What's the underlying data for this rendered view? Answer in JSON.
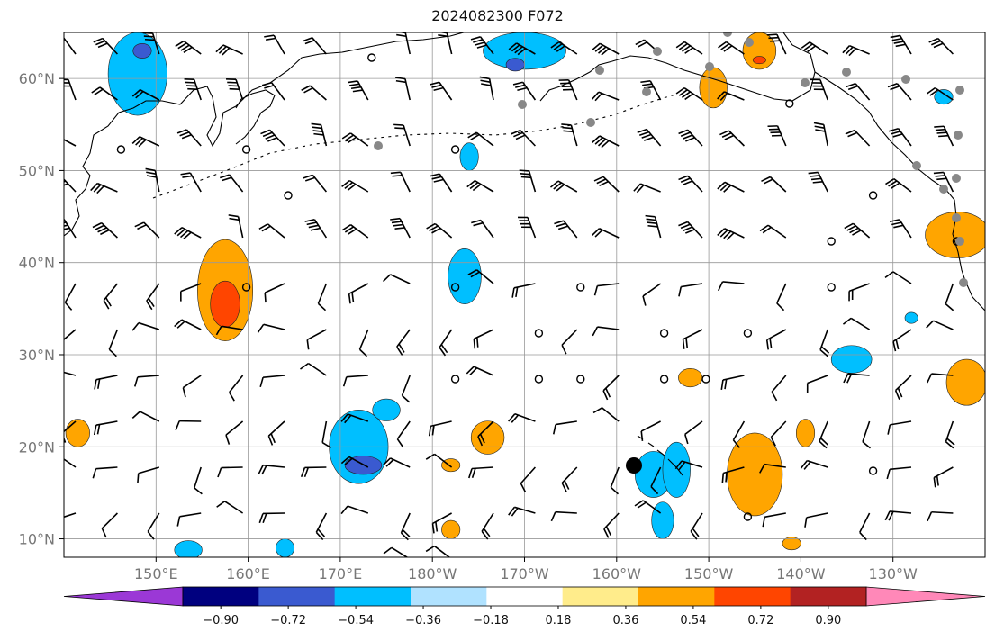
{
  "title": "2024082300 F072",
  "map": {
    "lon_min": 140,
    "lon_max": 240,
    "lat_min": 8,
    "lat_max": 65,
    "lon_ticks": [
      {
        "lon": 150,
        "label": "150°E"
      },
      {
        "lon": 160,
        "label": "160°E"
      },
      {
        "lon": 170,
        "label": "170°E"
      },
      {
        "lon": 180,
        "label": "180°W"
      },
      {
        "lon": 190,
        "label": "170°W"
      },
      {
        "lon": 200,
        "label": "160°W"
      },
      {
        "lon": 210,
        "label": "150°W"
      },
      {
        "lon": 220,
        "label": "140°W"
      },
      {
        "lon": 230,
        "label": "130°W"
      }
    ],
    "lat_ticks": [
      {
        "lat": 10,
        "label": "10°N"
      },
      {
        "lat": 20,
        "label": "20°N"
      },
      {
        "lat": 30,
        "label": "30°N"
      },
      {
        "lat": 40,
        "label": "40°N"
      },
      {
        "lat": 50,
        "label": "50°N"
      },
      {
        "lat": 60,
        "label": "60°N"
      }
    ],
    "grid": true,
    "colors": {
      "coast": "#000000",
      "grid": "#999999",
      "station": "#888888",
      "marker": "#000000"
    }
  },
  "colorbar": {
    "tick_labels": [
      "−0.90",
      "−0.72",
      "−0.54",
      "−0.36",
      "−0.18",
      "0.18",
      "0.36",
      "0.54",
      "0.72",
      "0.90"
    ],
    "colors": [
      "#9b38d6",
      "#00007f",
      "#3a5ad0",
      "#00bfff",
      "#b0e2ff",
      "#ffffff",
      "#ffec8b",
      "#ffa500",
      "#ff4500",
      "#b22222",
      "#ff88b8"
    ]
  },
  "shaded_regions": [
    {
      "lon": 157.5,
      "lat": 37,
      "rx": 3,
      "ry": 5.5,
      "color": "#ffa500"
    },
    {
      "lon": 157.5,
      "lat": 35.5,
      "rx": 1.6,
      "ry": 2.5,
      "color": "#ff4500"
    },
    {
      "lon": 148,
      "lat": 60.5,
      "rx": 3.2,
      "ry": 4.5,
      "color": "#00bfff"
    },
    {
      "lon": 148.5,
      "lat": 63,
      "rx": 1,
      "ry": 0.8,
      "color": "#3a5ad0"
    },
    {
      "lon": 172,
      "lat": 20,
      "rx": 3.2,
      "ry": 4,
      "color": "#00bfff"
    },
    {
      "lon": 172.5,
      "lat": 18,
      "rx": 2,
      "ry": 1,
      "color": "#3a5ad0"
    },
    {
      "lon": 175,
      "lat": 24,
      "rx": 1.5,
      "ry": 1.2,
      "color": "#00bfff"
    },
    {
      "lon": 183.5,
      "lat": 38.5,
      "rx": 1.8,
      "ry": 3,
      "color": "#00bfff"
    },
    {
      "lon": 184,
      "lat": 51.5,
      "rx": 1,
      "ry": 1.5,
      "color": "#00bfff"
    },
    {
      "lon": 190,
      "lat": 63,
      "rx": 4.5,
      "ry": 2,
      "color": "#00bfff"
    },
    {
      "lon": 189,
      "lat": 61.5,
      "rx": 1,
      "ry": 0.7,
      "color": "#3a5ad0"
    },
    {
      "lon": 204,
      "lat": 17,
      "rx": 2,
      "ry": 2.5,
      "color": "#00bfff"
    },
    {
      "lon": 206.5,
      "lat": 17.5,
      "rx": 1.5,
      "ry": 3,
      "color": "#00bfff"
    },
    {
      "lon": 205,
      "lat": 12,
      "rx": 1.2,
      "ry": 2,
      "color": "#00bfff"
    },
    {
      "lon": 225.5,
      "lat": 29.5,
      "rx": 2.2,
      "ry": 1.5,
      "color": "#00bfff"
    },
    {
      "lon": 186,
      "lat": 21,
      "rx": 1.8,
      "ry": 1.8,
      "color": "#ffa500"
    },
    {
      "lon": 182,
      "lat": 18,
      "rx": 1,
      "ry": 0.7,
      "color": "#ffa500"
    },
    {
      "lon": 182,
      "lat": 11,
      "rx": 1,
      "ry": 1,
      "color": "#ffa500"
    },
    {
      "lon": 215,
      "lat": 17,
      "rx": 3,
      "ry": 4.5,
      "color": "#ffa500"
    },
    {
      "lon": 220.5,
      "lat": 21.5,
      "rx": 1,
      "ry": 1.5,
      "color": "#ffa500"
    },
    {
      "lon": 210.5,
      "lat": 59,
      "rx": 1.5,
      "ry": 2.2,
      "color": "#ffa500"
    },
    {
      "lon": 215.5,
      "lat": 63,
      "rx": 1.8,
      "ry": 2,
      "color": "#ffa500"
    },
    {
      "lon": 215.5,
      "lat": 62,
      "rx": 0.7,
      "ry": 0.4,
      "color": "#ff4500"
    },
    {
      "lon": 238,
      "lat": 27,
      "rx": 2.2,
      "ry": 2.5,
      "color": "#ffa500"
    },
    {
      "lon": 237,
      "lat": 43,
      "rx": 3.5,
      "ry": 2.5,
      "color": "#ffa500"
    },
    {
      "lon": 208,
      "lat": 27.5,
      "rx": 1.3,
      "ry": 1,
      "color": "#ffa500"
    },
    {
      "lon": 219,
      "lat": 9.5,
      "rx": 1,
      "ry": 0.7,
      "color": "#ffa500"
    },
    {
      "lon": 141.5,
      "lat": 21.5,
      "rx": 1.3,
      "ry": 1.5,
      "color": "#ffa500"
    },
    {
      "lon": 153.5,
      "lat": 8.8,
      "rx": 1.5,
      "ry": 1,
      "color": "#00bfff"
    },
    {
      "lon": 164,
      "lat": 9,
      "rx": 1,
      "ry": 1,
      "color": "#00bfff"
    },
    {
      "lon": 235.5,
      "lat": 58,
      "rx": 1,
      "ry": 0.8,
      "color": "#00bfff"
    },
    {
      "lon": 232,
      "lat": 34,
      "rx": 0.7,
      "ry": 0.6,
      "color": "#00bfff"
    }
  ]
}
